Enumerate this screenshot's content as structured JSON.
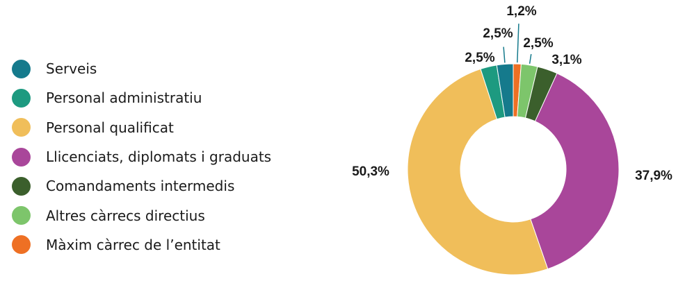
{
  "chart_data": {
    "type": "donut",
    "title": "",
    "categories": [
      "Serveis",
      "Personal administratiu",
      "Personal qualificat",
      "Llicenciats, diplomats i graduats",
      "Comandaments intermedis",
      "Altres càrrecs directius",
      "Màxim càrrec de l’entitat"
    ],
    "values": [
      2.5,
      2.5,
      50.3,
      37.9,
      3.1,
      2.5,
      1.2
    ],
    "value_labels": [
      "2,5%",
      "2,5%",
      "50,3%",
      "37,9%",
      "3,1%",
      "2,5%",
      "1,2%"
    ],
    "colors": [
      "#157a8c",
      "#1d9a80",
      "#f0be5a",
      "#a9469a",
      "#3b5f2c",
      "#7dc56b",
      "#ee7024"
    ],
    "clockwise_from_top_order": [
      "Màxim càrrec de l’entitat",
      "Altres càrrecs directius",
      "Comandaments intermedis",
      "Llicenciats, diplomats i graduats",
      "Personal qualificat",
      "Personal administratiu",
      "Serveis"
    ],
    "legend_position": "left",
    "grid": false
  }
}
